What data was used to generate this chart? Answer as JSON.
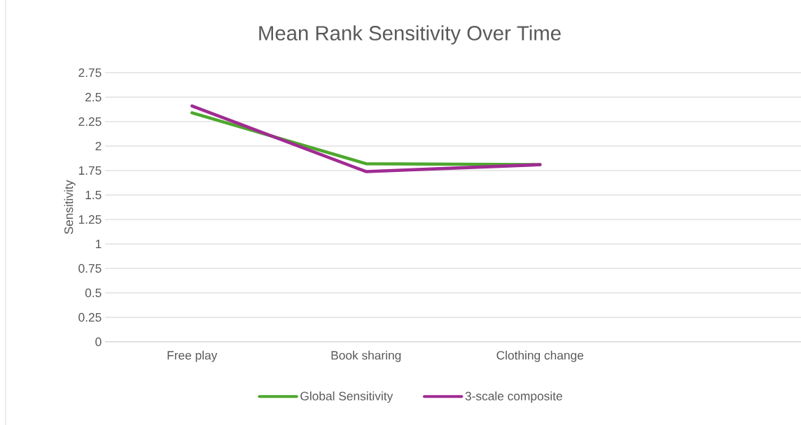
{
  "chart_data": {
    "type": "line",
    "title": "Mean Rank Sensitivity Over Time",
    "ylabel": "Sensitivity",
    "categories": [
      "Free play",
      "Book sharing",
      "Clothing change",
      null
    ],
    "series": [
      {
        "name": "Global Sensitivity",
        "color": "#4ea72e",
        "values": [
          2.34,
          1.82,
          1.81,
          null
        ]
      },
      {
        "name": "3-scale composite",
        "color": "#a02b93",
        "values": [
          2.41,
          1.74,
          1.81,
          null
        ]
      }
    ],
    "ylim": [
      0,
      2.75
    ],
    "yticks": [
      0,
      0.25,
      0.5,
      0.75,
      1,
      1.25,
      1.5,
      1.75,
      2,
      2.25,
      2.5,
      2.75
    ],
    "grid": "y",
    "legend": "bottom",
    "marker": "none",
    "line_style": "solid"
  }
}
